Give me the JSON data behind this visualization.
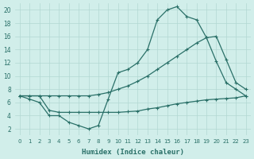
{
  "xlabel": "Humidex (Indice chaleur)",
  "xlim": [
    -0.5,
    23.5
  ],
  "ylim": [
    1,
    21
  ],
  "yticks": [
    2,
    4,
    6,
    8,
    10,
    12,
    14,
    16,
    18,
    20
  ],
  "xticks": [
    0,
    1,
    2,
    3,
    4,
    5,
    6,
    7,
    8,
    9,
    10,
    11,
    12,
    13,
    14,
    15,
    16,
    17,
    18,
    19,
    20,
    21,
    22,
    23
  ],
  "bg_color": "#d1eeea",
  "grid_color": "#b2d8d2",
  "line_color": "#2a7068",
  "line1_x": [
    0,
    1,
    2,
    3,
    4,
    5,
    6,
    7,
    8,
    9,
    10,
    11,
    12,
    13,
    14,
    15,
    16,
    17,
    18,
    19,
    20,
    21,
    22,
    23
  ],
  "line1_y": [
    7,
    6.5,
    6,
    4,
    4,
    3,
    2.5,
    2,
    2.5,
    6.5,
    10.5,
    11,
    12,
    14,
    18.5,
    20,
    20.5,
    19,
    18.5,
    15.8,
    12.2,
    9,
    8,
    7
  ],
  "line2_x": [
    0,
    1,
    2,
    3,
    4,
    5,
    6,
    7,
    8,
    9,
    10,
    11,
    12,
    13,
    14,
    15,
    16,
    17,
    18,
    19,
    20,
    21,
    22,
    23
  ],
  "line2_y": [
    7,
    7,
    7,
    7,
    7,
    7,
    7,
    7,
    7.2,
    7.5,
    8.0,
    8.5,
    9.2,
    10.0,
    11.0,
    12.0,
    13.0,
    14.0,
    15.0,
    15.8,
    16.0,
    12.5,
    9.0,
    8.0
  ],
  "line3_x": [
    0,
    1,
    2,
    3,
    4,
    5,
    6,
    7,
    8,
    9,
    10,
    11,
    12,
    13,
    14,
    15,
    16,
    17,
    18,
    19,
    20,
    21,
    22,
    23
  ],
  "line3_y": [
    7.0,
    7.0,
    7.0,
    4.8,
    4.5,
    4.5,
    4.5,
    4.5,
    4.5,
    4.5,
    4.5,
    4.6,
    4.7,
    5.0,
    5.2,
    5.5,
    5.8,
    6.0,
    6.2,
    6.4,
    6.5,
    6.6,
    6.7,
    7.0
  ]
}
